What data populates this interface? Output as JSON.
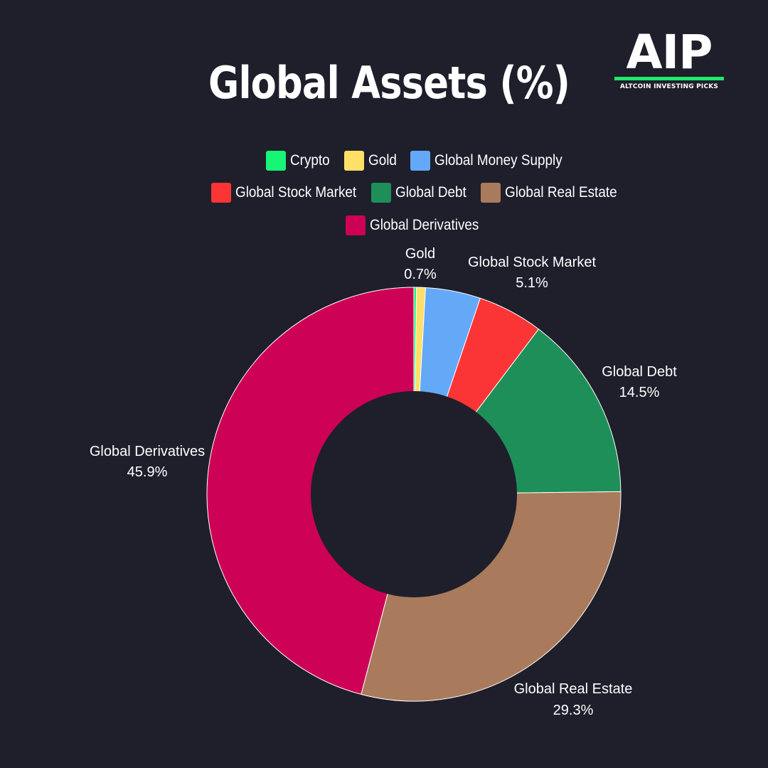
{
  "header": {
    "title": "Global Assets (%)"
  },
  "logo": {
    "mark": "AIP",
    "tagline": "ALTCOIN INVESTING PICKS"
  },
  "legend": {
    "items": [
      {
        "label": "Crypto",
        "color": "#16f576"
      },
      {
        "label": "Gold",
        "color": "#ffe066"
      },
      {
        "label": "Global Money Supply",
        "color": "#64a9f8"
      },
      {
        "label": "Global Stock Market",
        "color": "#fb3535"
      },
      {
        "label": "Global Debt",
        "color": "#1f8f5a"
      },
      {
        "label": "Global Real Estate",
        "color": "#a97b5c"
      },
      {
        "label": "Global Derivatives",
        "color": "#cd0155"
      }
    ]
  },
  "chart_data": {
    "type": "pie",
    "donut": true,
    "title": "Global Assets (%)",
    "legend_placement": "top",
    "unit": "%",
    "categories": [
      "Crypto",
      "Gold",
      "Global Money Supply",
      "Global Stock Market",
      "Global Debt",
      "Global Real Estate",
      "Global Derivatives"
    ],
    "values": [
      0.2,
      0.7,
      4.3,
      5.1,
      14.5,
      29.3,
      45.9
    ],
    "colors": [
      "#16f576",
      "#ffe066",
      "#64a9f8",
      "#fb3535",
      "#1f8f5a",
      "#a97b5c",
      "#cd0155"
    ],
    "data_labels": [
      {
        "name": "Gold",
        "value": "0.7%"
      },
      {
        "name": "Global Stock Market",
        "value": "5.1%"
      },
      {
        "name": "Global Debt",
        "value": "14.5%"
      },
      {
        "name": "Global Real Estate",
        "value": "29.3%"
      },
      {
        "name": "Global Derivatives",
        "value": "45.9%"
      }
    ]
  }
}
